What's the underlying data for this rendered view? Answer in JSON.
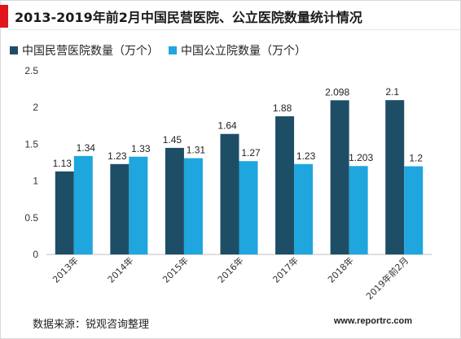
{
  "header": {
    "title": "2013-2019年前2月中国民营医院、公立医院数量统计情况"
  },
  "footer": {
    "source": "数据来源：锐观咨询整理",
    "site": "www.reportrc.com"
  },
  "colors": {
    "accent": "#e1141b",
    "private": "#1e4e66",
    "public": "#1fa6de"
  },
  "chart_data": {
    "type": "bar",
    "categories": [
      "2013年",
      "2014年",
      "2015年",
      "2016年",
      "2017年",
      "2018年",
      "2019年前2月"
    ],
    "series": [
      {
        "name": "中国民营医院数量（万个）",
        "values": [
          1.13,
          1.23,
          1.45,
          1.64,
          1.88,
          2.098,
          2.1
        ],
        "labels": [
          "1.13",
          "1.23",
          "1.45",
          "1.64",
          "1.88",
          "2.098",
          "2.1"
        ],
        "color": "#1e4e66"
      },
      {
        "name": "中国公立院数量（万个）",
        "values": [
          1.34,
          1.33,
          1.31,
          1.27,
          1.23,
          1.203,
          1.2
        ],
        "labels": [
          "1.34",
          "1.33",
          "1.31",
          "1.27",
          "1.23",
          "1.203",
          "1.2"
        ],
        "color": "#1fa6de"
      }
    ],
    "ylim": [
      0,
      2.5
    ],
    "yticks": [
      "0",
      "0.5",
      "1",
      "1.5",
      "2",
      "2.5"
    ],
    "ytick_values": [
      0,
      0.5,
      1,
      1.5,
      2,
      2.5
    ],
    "legend_position": "top-left",
    "grid": false
  }
}
